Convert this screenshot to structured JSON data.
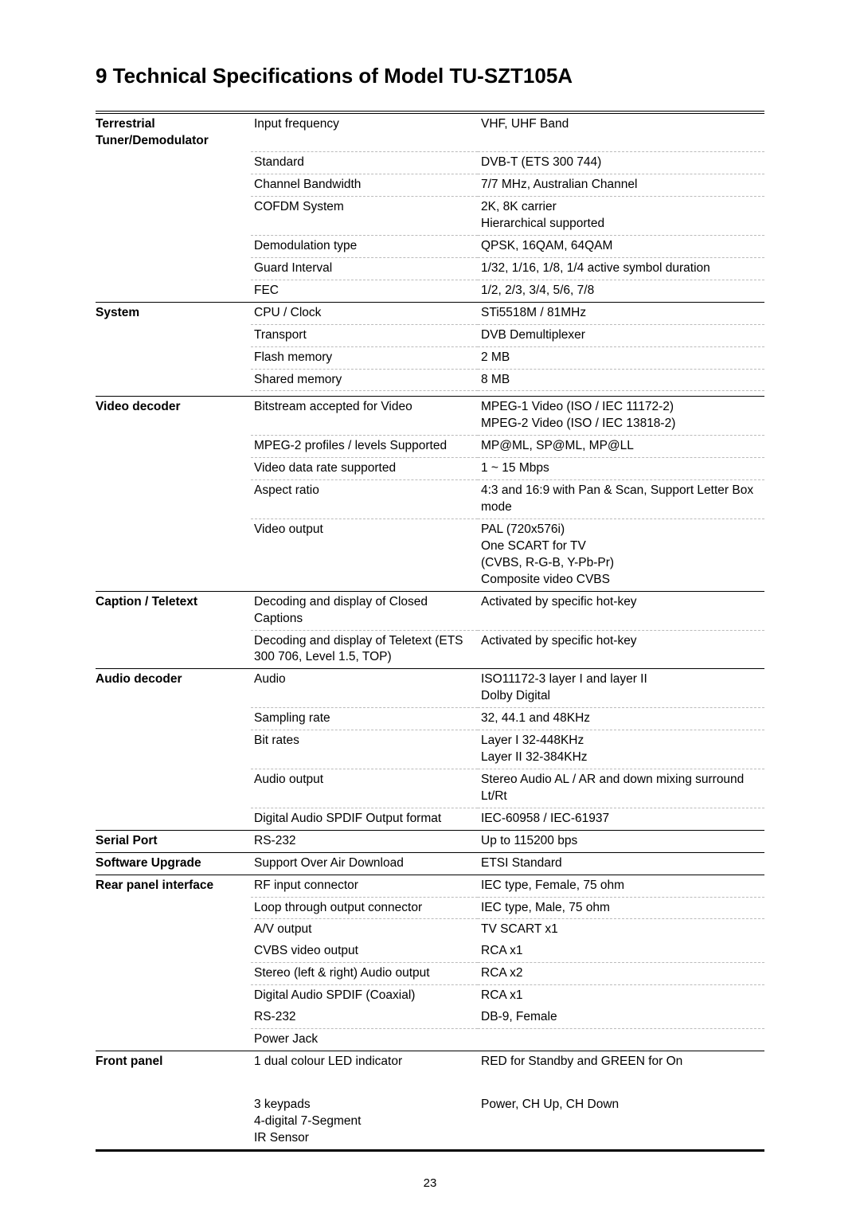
{
  "title": "9  Technical Specifications of Model TU-SZT105A",
  "pageNumber": "23",
  "sections": [
    {
      "category": "Terrestrial Tuner/Demodulator",
      "rows": [
        {
          "param": "Input frequency",
          "value": "VHF, UHF Band"
        },
        {
          "param": "Standard",
          "value": "DVB-T (ETS 300 744)"
        },
        {
          "param": "Channel Bandwidth",
          "value": "7/7 MHz, Australian Channel"
        },
        {
          "param": "COFDM System",
          "value": "2K, 8K carrier\nHierarchical supported"
        },
        {
          "param": "Demodulation type",
          "value": "QPSK, 16QAM, 64QAM"
        },
        {
          "param": "Guard Interval",
          "value": "1/32, 1/16, 1/8, 1/4 active symbol duration"
        },
        {
          "param": "FEC",
          "value": "1/2, 2/3, 3/4, 5/6, 7/8"
        }
      ]
    },
    {
      "category": "System",
      "rows": [
        {
          "param": "CPU / Clock",
          "value": "STi5518M / 81MHz"
        },
        {
          "param": "Transport",
          "value": "DVB Demultiplexer"
        },
        {
          "param": "Flash memory",
          "value": "2 MB"
        },
        {
          "param": "Shared memory",
          "value": "8 MB"
        },
        {
          "param": "",
          "value": ""
        }
      ]
    },
    {
      "category": "Video decoder",
      "rows": [
        {
          "param": "Bitstream accepted for Video",
          "value": "MPEG-1 Video (ISO / IEC 11172-2)\nMPEG-2 Video (ISO / IEC 13818-2)"
        },
        {
          "param": "MPEG-2 profiles / levels Supported",
          "value": "MP@ML, SP@ML, MP@LL"
        },
        {
          "param": "Video data rate supported",
          "value": "1 ~ 15 Mbps"
        },
        {
          "param": "Aspect ratio",
          "value": "4:3 and 16:9 with Pan & Scan, Support Letter Box mode"
        },
        {
          "param": "Video output",
          "value": "PAL (720x576i)\nOne SCART for TV\n(CVBS, R-G-B, Y-Pb-Pr)\nComposite video CVBS"
        }
      ]
    },
    {
      "category": "Caption / Teletext",
      "rows": [
        {
          "param": "Decoding and display of Closed Captions",
          "value": "Activated by specific hot-key"
        },
        {
          "param": "Decoding and display of Teletext (ETS 300 706, Level 1.5, TOP)",
          "value": "Activated by specific hot-key"
        }
      ]
    },
    {
      "category": "Audio decoder",
      "rows": [
        {
          "param": "Audio",
          "value": "ISO11172-3 layer I and layer II\nDolby Digital"
        },
        {
          "param": "Sampling rate",
          "value": "32, 44.1 and 48KHz"
        },
        {
          "param": "Bit rates",
          "value": "Layer I 32-448KHz\nLayer II 32-384KHz"
        },
        {
          "param": "Audio output",
          "value": "Stereo Audio AL / AR and down mixing surround Lt/Rt"
        },
        {
          "param": "Digital Audio SPDIF Output format",
          "value": "IEC-60958 / IEC-61937"
        }
      ]
    },
    {
      "category": "Serial Port",
      "rows": [
        {
          "param": "RS-232",
          "value": "Up to 115200 bps"
        }
      ]
    },
    {
      "category": "Software Upgrade",
      "rows": [
        {
          "param": "Support Over Air Download",
          "value": "ETSI Standard"
        }
      ]
    },
    {
      "category": "Rear panel interface",
      "rows": [
        {
          "param": "RF input connector",
          "value": "IEC type, Female, 75 ohm"
        },
        {
          "param": "Loop through output connector",
          "value": "IEC type, Male, 75 ohm"
        },
        {
          "param": "A/V output",
          "value": "TV SCART x1",
          "noDash": true
        },
        {
          "param": "CVBS video output",
          "value": "RCA x1"
        },
        {
          "param": "Stereo (left & right) Audio output",
          "value": "RCA x2"
        },
        {
          "param": "Digital Audio SPDIF (Coaxial)",
          "value": "RCA x1",
          "noDash": true
        },
        {
          "param": "RS-232",
          "value": "DB-9, Female"
        },
        {
          "param": "Power Jack",
          "value": ""
        }
      ]
    },
    {
      "category": "Front panel",
      "rows": [
        {
          "param": "1 dual colour LED indicator",
          "value": "RED for Standby and GREEN for On",
          "noDash": true
        },
        {
          "param": " ",
          "value": "",
          "noDash": true
        },
        {
          "param": "3 keypads\n4-digital 7-Segment\nIR Sensor",
          "value": "Power, CH Up, CH Down"
        }
      ]
    }
  ]
}
